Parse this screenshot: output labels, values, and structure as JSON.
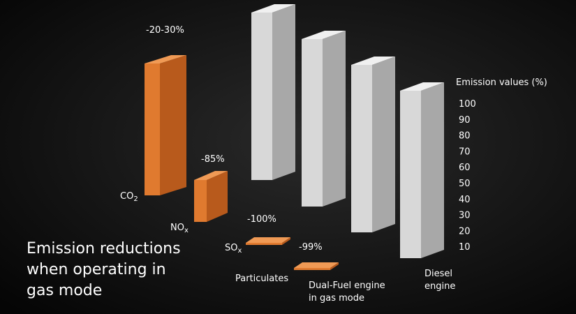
{
  "chart_data": {
    "type": "bar",
    "title": "Emission reductions when operating in gas mode",
    "title_lines": [
      "Emission reductions",
      "when operating in",
      "gas mode"
    ],
    "ylabel": "Emission values (%)",
    "ylim": [
      0,
      100
    ],
    "yticks": [
      "10",
      "20",
      "30",
      "40",
      "50",
      "60",
      "70",
      "80",
      "90",
      "100"
    ],
    "categories": [
      "CO2",
      "NOx",
      "SOx",
      "Particulates"
    ],
    "category_labels": [
      {
        "base": "CO",
        "sub": "2"
      },
      {
        "base": "NO",
        "sub": "x"
      },
      {
        "base": "SO",
        "sub": "x"
      },
      {
        "base": "Particulates",
        "sub": ""
      }
    ],
    "series": [
      {
        "name": "Dual-Fuel engine in gas mode",
        "name_lines": [
          "Dual-Fuel engine",
          "in gas mode"
        ],
        "values": [
          75,
          15,
          0,
          1
        ],
        "labels": [
          "-20-30%",
          "-85%",
          "-100%",
          "-99%"
        ],
        "color": "#e07a2f"
      },
      {
        "name": "Diesel engine",
        "name_lines": [
          "Diesel",
          "engine"
        ],
        "values": [
          100,
          100,
          100,
          100
        ],
        "color": "#d9d9d9"
      }
    ],
    "colors": {
      "background": "#0f0f0f",
      "orange_front": "#e07a2f",
      "orange_side": "#b85a1c",
      "orange_top": "#f09a55",
      "gray_front": "#d8d8d8",
      "gray_side": "#a8a8a8",
      "gray_top": "#f0f0f0",
      "title": "#e07a2f",
      "text": "#ffffff"
    }
  }
}
